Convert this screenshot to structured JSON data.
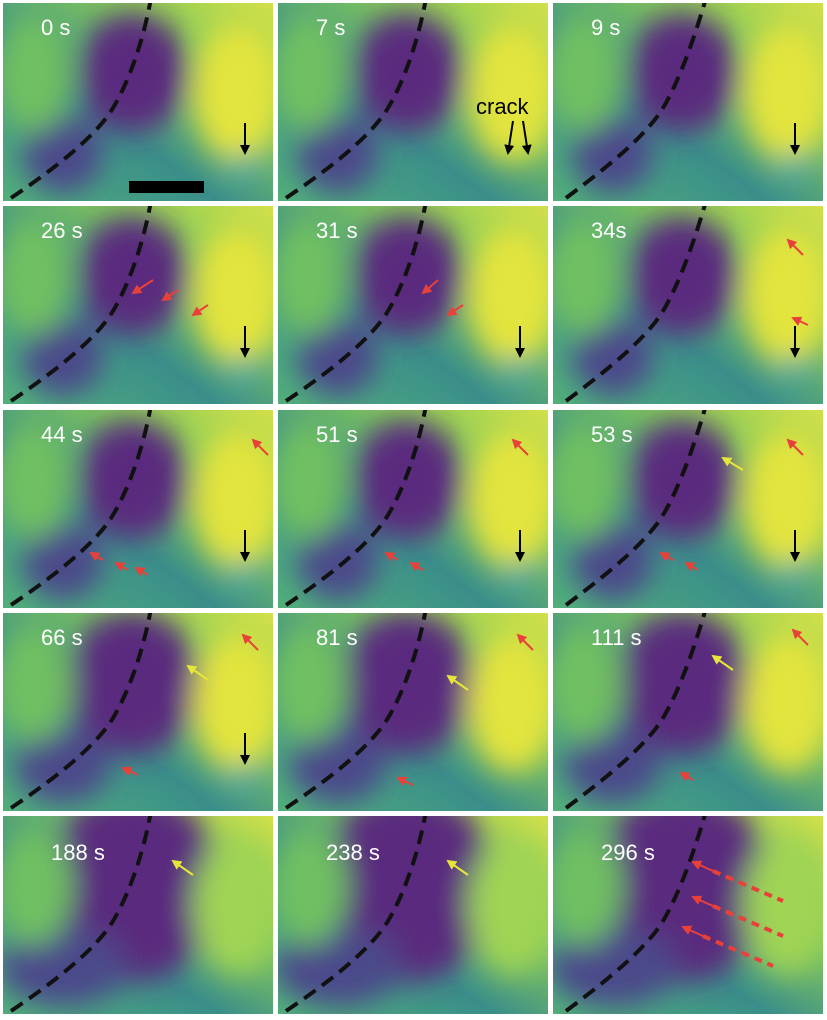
{
  "panels": [
    {
      "time": "0 s"
    },
    {
      "time": "7 s"
    },
    {
      "time": "9 s"
    },
    {
      "time": "26 s"
    },
    {
      "time": "31 s"
    },
    {
      "time": "34s"
    },
    {
      "time": "44 s"
    },
    {
      "time": "51 s"
    },
    {
      "time": "53 s"
    },
    {
      "time": "66 s"
    },
    {
      "time": "81 s"
    },
    {
      "time": "111 s"
    },
    {
      "time": "188 s"
    },
    {
      "time": "238 s"
    },
    {
      "time": "296 s"
    }
  ],
  "annotation": {
    "text": "crack"
  }
}
